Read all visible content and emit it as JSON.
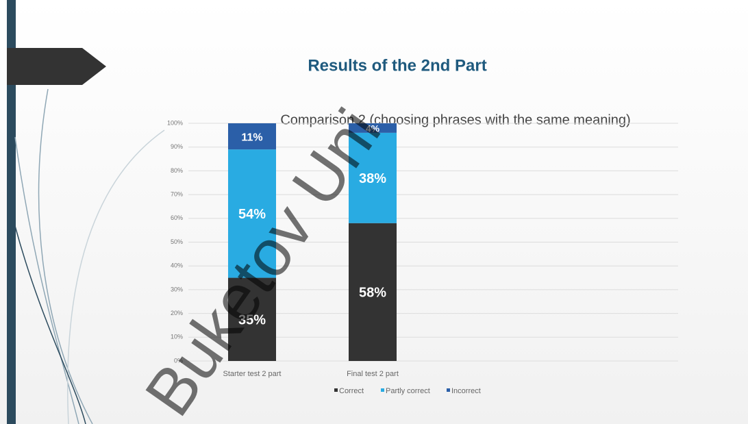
{
  "chart_data": {
    "type": "stacked_bar",
    "title": "Results of the 2nd Part",
    "subtitle": "Comparison 2 (choosing phrases with the same meaning)",
    "watermark": "Buketov Uni",
    "categories": [
      "Starter test 2 part",
      "Final test 2 part"
    ],
    "series": [
      {
        "name": "Correct",
        "color": "#333333",
        "values": [
          35,
          58
        ],
        "value_labels": [
          "35%",
          "58%"
        ]
      },
      {
        "name": "Partly correct",
        "color": "#29abe2",
        "values": [
          54,
          38
        ],
        "value_labels": [
          "54%",
          "38%"
        ]
      },
      {
        "name": "Incorrect",
        "color": "#2b5fa8",
        "values": [
          11,
          4
        ],
        "value_labels": [
          "11%",
          "4%"
        ]
      }
    ],
    "ylim": [
      0,
      100
    ],
    "yticks": [
      {
        "value": 0,
        "label": "0%"
      },
      {
        "value": 10,
        "label": "10%"
      },
      {
        "value": 20,
        "label": "20%"
      },
      {
        "value": 30,
        "label": "30%"
      },
      {
        "value": 40,
        "label": "40%"
      },
      {
        "value": 50,
        "label": "50%"
      },
      {
        "value": 60,
        "label": "60%"
      },
      {
        "value": 70,
        "label": "70%"
      },
      {
        "value": 80,
        "label": "80%"
      },
      {
        "value": 90,
        "label": "90%"
      },
      {
        "value": 100,
        "label": "100%"
      }
    ],
    "grid": true,
    "legend": "bottom"
  }
}
